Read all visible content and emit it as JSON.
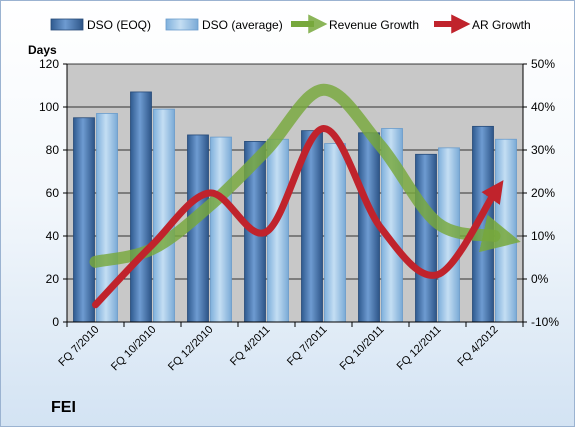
{
  "company": "FEI",
  "colors": {
    "dso_eoq": "#4f81bd",
    "dso_avg": "#9dc3e6",
    "revenue_growth": "#77a83c",
    "ar_growth": "#c0232c",
    "plot_bg": "#c8c8c8",
    "grid": "#000000"
  },
  "chart_data": {
    "type": "bar",
    "y_left_title": "Days",
    "categories": [
      "FQ 7/2010",
      "FQ 10/2010",
      "FQ 12/2010",
      "FQ 4/2011",
      "FQ 7/2011",
      "FQ 10/2011",
      "FQ 12/2011",
      "FQ 4/2012"
    ],
    "ylim_left": [
      0,
      120
    ],
    "yticks_left": [
      "0",
      "20",
      "40",
      "60",
      "80",
      "100",
      "120"
    ],
    "ylim_right": [
      -10,
      50
    ],
    "yticks_right": [
      "-10%",
      "0%",
      "10%",
      "20%",
      "30%",
      "40%",
      "50%"
    ],
    "legend_position": "top",
    "grid": true,
    "series": [
      {
        "name": "DSO (EOQ)",
        "type": "bar",
        "axis": "left",
        "values": [
          95,
          107,
          87,
          84,
          89,
          88,
          78,
          91
        ]
      },
      {
        "name": "DSO (average)",
        "type": "bar",
        "axis": "left",
        "values": [
          97,
          99,
          86,
          85,
          83,
          90,
          81,
          85
        ]
      },
      {
        "name": "Revenue Growth",
        "type": "line",
        "axis": "right",
        "values": [
          4,
          7,
          17,
          30,
          44,
          31,
          13,
          10
        ]
      },
      {
        "name": "AR Growth",
        "type": "line",
        "axis": "right",
        "values": [
          -6,
          8,
          20,
          11,
          35,
          12,
          1,
          20
        ]
      }
    ]
  }
}
